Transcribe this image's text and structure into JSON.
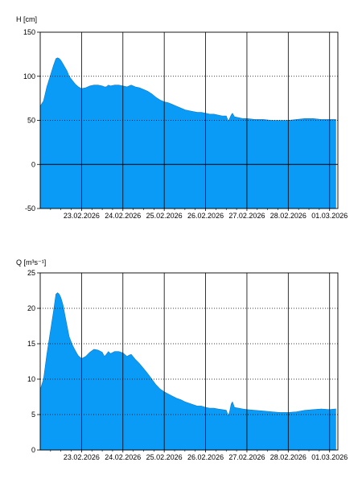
{
  "colors": {
    "fill": "#0A9BF7",
    "frame": "#000000",
    "grid": "#000000",
    "background": "#FFFFFF"
  },
  "chart_data": [
    {
      "type": "area",
      "ylabel": "H [cm]",
      "ylim": [
        -50,
        150
      ],
      "yticks": [
        -50,
        0,
        50,
        100,
        150
      ],
      "grid": {
        "horizontal": "dotted",
        "vertical": "solid",
        "zero_line": true
      },
      "x_start": "22.02.2026 21:00",
      "xlim": [
        0,
        7.2
      ],
      "xticks": [
        {
          "x": 1.0,
          "label": "23.02.2026"
        },
        {
          "x": 2.0,
          "label": "24.02.2026"
        },
        {
          "x": 3.0,
          "label": "25.02.2026"
        },
        {
          "x": 4.0,
          "label": "26.02.2026"
        },
        {
          "x": 5.0,
          "label": "27.02.2026"
        },
        {
          "x": 6.0,
          "label": "28.02.2026"
        },
        {
          "x": 7.0,
          "label": "01.03.2026"
        }
      ],
      "series": [
        {
          "x": [
            0.0,
            0.08,
            0.16,
            0.24,
            0.32,
            0.38,
            0.42,
            0.46,
            0.5,
            0.55,
            0.6,
            0.65,
            0.7,
            0.78,
            0.85,
            0.92,
            1.0,
            1.1,
            1.2,
            1.3,
            1.4,
            1.5,
            1.55,
            1.6,
            1.65,
            1.7,
            1.8,
            1.9,
            2.0,
            2.1,
            2.15,
            2.2,
            2.3,
            2.4,
            2.5,
            2.6,
            2.7,
            2.8,
            2.9,
            3.0,
            3.1,
            3.2,
            3.3,
            3.4,
            3.5,
            3.6,
            3.7,
            3.8,
            3.9,
            4.0,
            4.1,
            4.2,
            4.3,
            4.4,
            4.5,
            4.55,
            4.58,
            4.62,
            4.65,
            4.7,
            4.8,
            4.9,
            5.0,
            5.2,
            5.4,
            5.6,
            5.8,
            6.0,
            6.2,
            6.4,
            6.6,
            6.8,
            7.0,
            7.15
          ],
          "values": [
            66,
            72,
            88,
            100,
            112,
            120,
            121,
            120,
            118,
            114,
            110,
            106,
            100,
            95,
            91,
            88,
            86,
            87,
            89,
            90,
            90,
            89,
            88,
            88,
            90,
            89,
            90,
            90,
            89,
            88,
            89,
            90,
            88,
            87,
            85,
            83,
            80,
            76,
            73,
            71,
            70,
            68,
            66,
            64,
            62,
            61,
            60,
            59,
            59,
            58,
            57,
            57,
            56,
            55,
            55,
            49,
            52,
            56,
            58,
            54,
            53,
            52,
            52,
            51,
            51,
            50,
            50,
            50,
            51,
            52,
            52,
            51,
            51,
            51
          ]
        }
      ]
    },
    {
      "type": "area",
      "ylabel": "Q [m³s⁻¹]",
      "ylim": [
        0,
        25
      ],
      "yticks": [
        0,
        5,
        10,
        15,
        20,
        25
      ],
      "grid": {
        "horizontal": "dotted",
        "vertical": "solid",
        "zero_line": false
      },
      "x_start": "22.02.2026 21:00",
      "xlim": [
        0,
        7.2
      ],
      "xticks": [
        {
          "x": 1.0,
          "label": "23.02.2026"
        },
        {
          "x": 2.0,
          "label": "24.02.2026"
        },
        {
          "x": 3.0,
          "label": "25.02.2026"
        },
        {
          "x": 4.0,
          "label": "26.02.2026"
        },
        {
          "x": 5.0,
          "label": "27.02.2026"
        },
        {
          "x": 6.0,
          "label": "28.02.2026"
        },
        {
          "x": 7.0,
          "label": "01.03.2026"
        }
      ],
      "series": [
        {
          "x": [
            0.0,
            0.08,
            0.16,
            0.24,
            0.32,
            0.38,
            0.42,
            0.46,
            0.5,
            0.55,
            0.6,
            0.65,
            0.7,
            0.78,
            0.85,
            0.92,
            1.0,
            1.1,
            1.2,
            1.3,
            1.4,
            1.5,
            1.55,
            1.6,
            1.65,
            1.7,
            1.8,
            1.9,
            2.0,
            2.1,
            2.15,
            2.2,
            2.3,
            2.4,
            2.5,
            2.6,
            2.7,
            2.8,
            2.9,
            3.0,
            3.1,
            3.2,
            3.3,
            3.4,
            3.5,
            3.6,
            3.7,
            3.8,
            3.9,
            4.0,
            4.1,
            4.2,
            4.3,
            4.4,
            4.5,
            4.55,
            4.58,
            4.62,
            4.65,
            4.7,
            4.8,
            4.9,
            5.0,
            5.2,
            5.4,
            5.6,
            5.8,
            6.0,
            6.2,
            6.4,
            6.6,
            6.8,
            7.0,
            7.15
          ],
          "values": [
            8.5,
            10,
            13.5,
            16.5,
            19.5,
            22,
            22.2,
            22,
            21.5,
            20.5,
            19,
            17.5,
            16,
            14.8,
            14,
            13.3,
            12.9,
            13.2,
            13.8,
            14.2,
            14.1,
            13.8,
            13.2,
            13.5,
            13.9,
            13.6,
            13.9,
            13.9,
            13.7,
            13.2,
            13.4,
            13.5,
            12.8,
            12.2,
            11.5,
            10.8,
            10.0,
            9.2,
            8.6,
            8.2,
            7.9,
            7.6,
            7.3,
            7.1,
            6.8,
            6.6,
            6.4,
            6.2,
            6.2,
            6.0,
            5.9,
            5.9,
            5.8,
            5.7,
            5.6,
            4.8,
            5.4,
            6.5,
            6.8,
            6.0,
            5.9,
            5.8,
            5.7,
            5.6,
            5.5,
            5.4,
            5.3,
            5.3,
            5.4,
            5.6,
            5.7,
            5.8,
            5.7,
            5.8
          ]
        }
      ]
    }
  ]
}
